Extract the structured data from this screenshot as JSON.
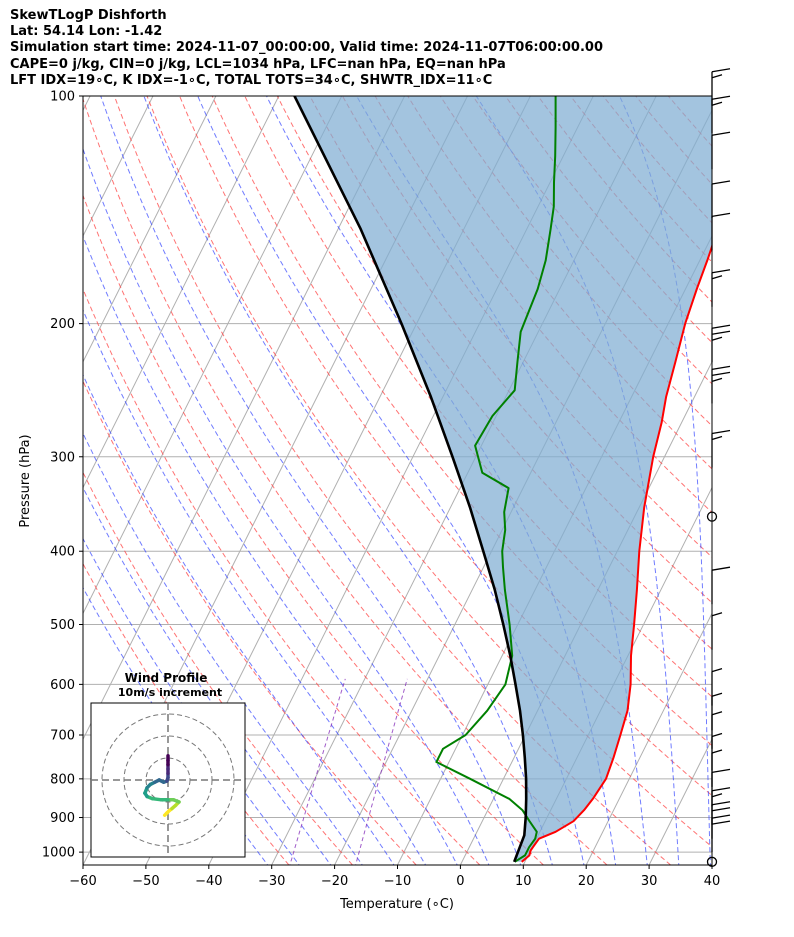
{
  "header": {
    "line1": "SkewTLogP Dishforth",
    "line2": "Lat: 54.14   Lon: -1.42",
    "line3": "Simulation start time: 2024-11-07_00:00:00, Valid time: 2024-11-07T06:00:00.00",
    "line4": "CAPE=0 j/kg, CIN=0 j/kg, LCL=1034 hPa, LFC=nan hPa, EQ=nan hPa",
    "line5": "LFT IDX=19∘C, K IDX=-1∘C, TOTAL TOTS=34∘C, SHWTR_IDX=11∘C"
  },
  "chart_data": {
    "type": "line",
    "subtype": "skew-T log-P",
    "xlabel": "Temperature (∘C)",
    "ylabel": "Pressure (hPa)",
    "xlim": [
      -60,
      40
    ],
    "ylim": [
      1040,
      100
    ],
    "y_scale": "log",
    "x_ticks": [
      "−60",
      "−50",
      "−40",
      "−30",
      "−20",
      "−10",
      "0",
      "10",
      "20",
      "30",
      "40"
    ],
    "y_ticks": [
      "100",
      "200",
      "300",
      "400",
      "500",
      "600",
      "700",
      "800",
      "900",
      "1000"
    ],
    "grid": true,
    "colors": {
      "temperature": "#ff0000",
      "dewpoint": "#008000",
      "parcel": "#000000",
      "cin_shading": "#7fadd2",
      "dry_adiabats": "#ff4444",
      "moist_adiabats": "#3344ff",
      "mixing_ratio": "#8833bb"
    },
    "series": [
      {
        "key": "temperature",
        "points": [
          [
            1030,
            9.5
          ],
          [
            1010,
            10.2
          ],
          [
            995,
            10
          ],
          [
            985,
            10.1
          ],
          [
            960,
            10.4
          ],
          [
            940,
            12.5
          ],
          [
            910,
            14.5
          ],
          [
            880,
            15.3
          ],
          [
            850,
            15.8
          ],
          [
            800,
            16.3
          ],
          [
            750,
            15.8
          ],
          [
            700,
            15.1
          ],
          [
            650,
            14.3
          ],
          [
            600,
            12.7
          ],
          [
            550,
            10.5
          ],
          [
            500,
            8.5
          ],
          [
            450,
            6.2
          ],
          [
            400,
            3.5
          ],
          [
            350,
            0.8
          ],
          [
            300,
            -1.8
          ],
          [
            270,
            -3.2
          ],
          [
            250,
            -4.5
          ],
          [
            225,
            -5.8
          ],
          [
            200,
            -7.3
          ],
          [
            180,
            -8.2
          ],
          [
            165,
            -8.8
          ],
          [
            150,
            -9.6
          ],
          [
            135,
            -10.5
          ],
          [
            120,
            -11.2
          ],
          [
            110,
            -11.6
          ],
          [
            100,
            -12.0
          ]
        ]
      },
      {
        "key": "dewpoint",
        "points": [
          [
            1030,
            8.4
          ],
          [
            1010,
            9.5
          ],
          [
            985,
            9.5
          ],
          [
            960,
            9.8
          ],
          [
            940,
            9.5
          ],
          [
            910,
            7.5
          ],
          [
            880,
            5.5
          ],
          [
            850,
            2.5
          ],
          [
            800,
            -5.3
          ],
          [
            760,
            -12.0
          ],
          [
            730,
            -12.0
          ],
          [
            700,
            -9.5
          ],
          [
            650,
            -8.0
          ],
          [
            600,
            -7.2
          ],
          [
            550,
            -8.4
          ],
          [
            500,
            -11.3
          ],
          [
            450,
            -14.8
          ],
          [
            420,
            -16.9
          ],
          [
            400,
            -18.3
          ],
          [
            375,
            -19.5
          ],
          [
            355,
            -21.1
          ],
          [
            330,
            -22.3
          ],
          [
            315,
            -27.7
          ],
          [
            290,
            -31.0
          ],
          [
            265,
            -30.6
          ],
          [
            245,
            -29.1
          ],
          [
            225,
            -30.9
          ],
          [
            205,
            -32.8
          ],
          [
            180,
            -33.5
          ],
          [
            165,
            -34.5
          ],
          [
            150,
            -36.2
          ],
          [
            140,
            -37.5
          ],
          [
            130,
            -39.4
          ],
          [
            120,
            -41.3
          ],
          [
            110,
            -43.5
          ],
          [
            100,
            -46.0
          ]
        ]
      },
      {
        "key": "parcel",
        "points": [
          [
            1030,
            8.3
          ],
          [
            950,
            7.8
          ],
          [
            900,
            6.6
          ],
          [
            850,
            5.2
          ],
          [
            800,
            3.6
          ],
          [
            750,
            1.7
          ],
          [
            700,
            -0.4
          ],
          [
            650,
            -2.8
          ],
          [
            600,
            -5.6
          ],
          [
            550,
            -8.7
          ],
          [
            500,
            -12.3
          ],
          [
            450,
            -16.4
          ],
          [
            400,
            -21.3
          ],
          [
            350,
            -26.9
          ],
          [
            300,
            -33.7
          ],
          [
            250,
            -41.9
          ],
          [
            200,
            -52.4
          ],
          [
            150,
            -66.4
          ],
          [
            100,
            -87.5
          ]
        ]
      }
    ],
    "wind_barbs": [
      {
        "pressure": 1030,
        "calm": true
      },
      {
        "pressure": 1000,
        "barbs": [
          10,
          10
        ]
      },
      {
        "pressure": 960,
        "barbs": [
          10,
          10
        ]
      },
      {
        "pressure": 920,
        "barbs": [
          10,
          5
        ]
      },
      {
        "pressure": 870,
        "barbs": [
          10
        ]
      },
      {
        "pressure": 820,
        "barbs": [
          5
        ]
      },
      {
        "pressure": 780,
        "barbs": [
          5
        ]
      },
      {
        "pressure": 730,
        "barbs": [
          5
        ]
      },
      {
        "pressure": 690,
        "barbs": [
          5
        ]
      },
      {
        "pressure": 640,
        "barbs": [
          5
        ]
      },
      {
        "pressure": 540,
        "barbs": [
          5
        ]
      },
      {
        "pressure": 470,
        "barbs": [
          10
        ]
      },
      {
        "pressure": 360,
        "calm": true
      },
      {
        "pressure": 310,
        "barbs": [
          10,
          5
        ]
      },
      {
        "pressure": 255,
        "barbs": [
          10,
          10,
          5
        ]
      },
      {
        "pressure": 225,
        "barbs": [
          10,
          10,
          5
        ]
      },
      {
        "pressure": 190,
        "barbs": [
          10,
          5
        ]
      },
      {
        "pressure": 160,
        "barbs": [
          10
        ]
      },
      {
        "pressure": 145,
        "barbs": [
          10
        ]
      },
      {
        "pressure": 125,
        "barbs": [
          10
        ]
      },
      {
        "pressure": 112,
        "barbs": [
          10,
          5
        ]
      },
      {
        "pressure": 103,
        "barbs": [
          10,
          5
        ]
      }
    ],
    "hodograph": {
      "title": "Wind Profile",
      "subtitle": "10m/s increment",
      "ring_speeds_ms": [
        10,
        20,
        30
      ],
      "points_uv": [
        [
          -1.5,
          -16
        ],
        [
          -0.5,
          -15
        ],
        [
          0.5,
          -14
        ],
        [
          1.8,
          -13
        ],
        [
          3.5,
          -11.5
        ],
        [
          5,
          -10
        ],
        [
          2.5,
          -9
        ],
        [
          0,
          -9
        ],
        [
          -3,
          -9
        ],
        [
          -7,
          -8.5
        ],
        [
          -9.5,
          -7.5
        ],
        [
          -10.5,
          -6
        ],
        [
          -9.5,
          -3.5
        ],
        [
          -8,
          -2
        ],
        [
          -6,
          -1
        ],
        [
          -4,
          0
        ],
        [
          -2,
          -1
        ],
        [
          -0.5,
          -0.5
        ],
        [
          0,
          1
        ],
        [
          0,
          3
        ],
        [
          0,
          5
        ],
        [
          0,
          7
        ],
        [
          0,
          9
        ],
        [
          0,
          11
        ]
      ]
    }
  }
}
